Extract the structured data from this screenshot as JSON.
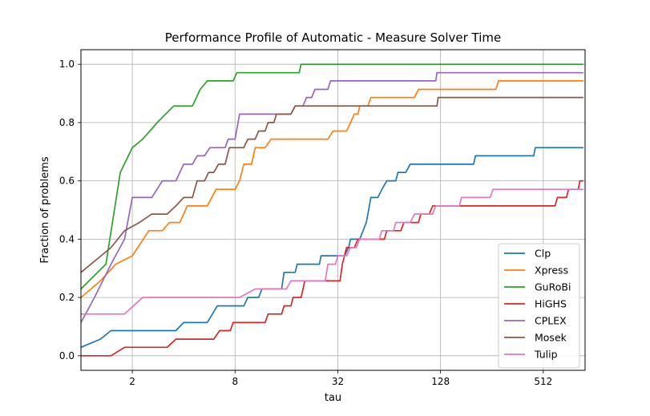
{
  "chart_data": {
    "type": "line",
    "step": true,
    "title": "Performance Profile of Automatic - Measure Solver Time",
    "xlabel": "tau",
    "ylabel": "Fraction of problems",
    "xscale": "log2",
    "xlim": [
      1,
      900
    ],
    "ylim": [
      -0.05,
      1.05
    ],
    "xticks": [
      2,
      8,
      32,
      128,
      512
    ],
    "xtick_labels": [
      "2",
      "8",
      "32",
      "128",
      "512"
    ],
    "yticks": [
      0.0,
      0.2,
      0.4,
      0.6,
      0.8,
      1.0
    ],
    "ytick_labels": [
      "0.0",
      "0.2",
      "0.4",
      "0.6",
      "0.8",
      "1.0"
    ],
    "grid": true,
    "legend_position": "lower-right",
    "series": [
      {
        "name": "Clp",
        "color": "#1f77b4",
        "points": [
          [
            1,
            0.029
          ],
          [
            1.3,
            0.057
          ],
          [
            1.5,
            0.086
          ],
          [
            2,
            0.086
          ],
          [
            3.6,
            0.086
          ],
          [
            4,
            0.114
          ],
          [
            5.5,
            0.114
          ],
          [
            6.3,
            0.171
          ],
          [
            9,
            0.171
          ],
          [
            9.5,
            0.2
          ],
          [
            11,
            0.2
          ],
          [
            11.5,
            0.229
          ],
          [
            15,
            0.229
          ],
          [
            15.5,
            0.286
          ],
          [
            18,
            0.286
          ],
          [
            18.5,
            0.314
          ],
          [
            25,
            0.314
          ],
          [
            25.5,
            0.343
          ],
          [
            35,
            0.343
          ],
          [
            37,
            0.371
          ],
          [
            38,
            0.4
          ],
          [
            43,
            0.4
          ],
          [
            45,
            0.429
          ],
          [
            47,
            0.457
          ],
          [
            48,
            0.486
          ],
          [
            50,
            0.543
          ],
          [
            55,
            0.543
          ],
          [
            58,
            0.571
          ],
          [
            62,
            0.6
          ],
          [
            70,
            0.6
          ],
          [
            72,
            0.629
          ],
          [
            80,
            0.629
          ],
          [
            85,
            0.657
          ],
          [
            200,
            0.657
          ],
          [
            205,
            0.686
          ],
          [
            450,
            0.686
          ],
          [
            460,
            0.714
          ],
          [
            880,
            0.714
          ]
        ]
      },
      {
        "name": "Xpress",
        "color": "#ff7f0e",
        "points": [
          [
            1,
            0.2
          ],
          [
            1.3,
            0.257
          ],
          [
            1.6,
            0.314
          ],
          [
            2,
            0.343
          ],
          [
            2.5,
            0.429
          ],
          [
            3,
            0.429
          ],
          [
            3.3,
            0.457
          ],
          [
            3.8,
            0.457
          ],
          [
            4.2,
            0.514
          ],
          [
            5.5,
            0.514
          ],
          [
            6.2,
            0.571
          ],
          [
            8,
            0.571
          ],
          [
            8.5,
            0.6
          ],
          [
            9,
            0.657
          ],
          [
            10,
            0.657
          ],
          [
            10.5,
            0.714
          ],
          [
            12,
            0.714
          ],
          [
            13,
            0.743
          ],
          [
            28,
            0.743
          ],
          [
            30,
            0.771
          ],
          [
            36,
            0.771
          ],
          [
            38,
            0.8
          ],
          [
            40,
            0.829
          ],
          [
            42,
            0.829
          ],
          [
            43,
            0.857
          ],
          [
            48,
            0.857
          ],
          [
            50,
            0.886
          ],
          [
            90,
            0.886
          ],
          [
            95,
            0.914
          ],
          [
            270,
            0.914
          ],
          [
            280,
            0.943
          ],
          [
            880,
            0.943
          ]
        ]
      },
      {
        "name": "GuRoBi",
        "color": "#2ca02c",
        "points": [
          [
            1,
            0.229
          ],
          [
            1.4,
            0.314
          ],
          [
            1.7,
            0.629
          ],
          [
            2,
            0.714
          ],
          [
            2.3,
            0.743
          ],
          [
            2.8,
            0.8
          ],
          [
            3.5,
            0.857
          ],
          [
            4.5,
            0.857
          ],
          [
            5,
            0.914
          ],
          [
            5.5,
            0.943
          ],
          [
            7.8,
            0.943
          ],
          [
            8.2,
            0.971
          ],
          [
            19,
            0.971
          ],
          [
            19.5,
            1.0
          ],
          [
            880,
            1.0
          ]
        ]
      },
      {
        "name": "HiGHS",
        "color": "#d62728",
        "points": [
          [
            1,
            0.0
          ],
          [
            1.5,
            0.0
          ],
          [
            1.8,
            0.029
          ],
          [
            3.2,
            0.029
          ],
          [
            3.6,
            0.057
          ],
          [
            6,
            0.057
          ],
          [
            6.5,
            0.086
          ],
          [
            7.5,
            0.086
          ],
          [
            7.8,
            0.114
          ],
          [
            12,
            0.114
          ],
          [
            12.5,
            0.143
          ],
          [
            15,
            0.143
          ],
          [
            15.5,
            0.171
          ],
          [
            17,
            0.171
          ],
          [
            17.5,
            0.2
          ],
          [
            19.5,
            0.2
          ],
          [
            20.5,
            0.257
          ],
          [
            33,
            0.257
          ],
          [
            34,
            0.314
          ],
          [
            36,
            0.371
          ],
          [
            40,
            0.371
          ],
          [
            42,
            0.4
          ],
          [
            60,
            0.4
          ],
          [
            62,
            0.429
          ],
          [
            75,
            0.429
          ],
          [
            78,
            0.457
          ],
          [
            95,
            0.457
          ],
          [
            98,
            0.486
          ],
          [
            110,
            0.486
          ],
          [
            115,
            0.514
          ],
          [
            160,
            0.514
          ],
          [
            165,
            0.514
          ],
          [
            600,
            0.514
          ],
          [
            620,
            0.543
          ],
          [
            700,
            0.543
          ],
          [
            720,
            0.571
          ],
          [
            820,
            0.571
          ],
          [
            840,
            0.6
          ],
          [
            880,
            0.6
          ]
        ]
      },
      {
        "name": "CPLEX",
        "color": "#9467bd",
        "points": [
          [
            1,
            0.114
          ],
          [
            1.2,
            0.2
          ],
          [
            1.5,
            0.314
          ],
          [
            1.8,
            0.4
          ],
          [
            2,
            0.543
          ],
          [
            2.6,
            0.543
          ],
          [
            3,
            0.6
          ],
          [
            3.6,
            0.6
          ],
          [
            4,
            0.657
          ],
          [
            4.5,
            0.657
          ],
          [
            4.8,
            0.686
          ],
          [
            5.3,
            0.686
          ],
          [
            5.7,
            0.714
          ],
          [
            7,
            0.714
          ],
          [
            7.3,
            0.743
          ],
          [
            8,
            0.743
          ],
          [
            8.5,
            0.829
          ],
          [
            17,
            0.829
          ],
          [
            18,
            0.857
          ],
          [
            20,
            0.857
          ],
          [
            21,
            0.886
          ],
          [
            22.5,
            0.886
          ],
          [
            23.5,
            0.914
          ],
          [
            28,
            0.914
          ],
          [
            29,
            0.943
          ],
          [
            120,
            0.943
          ],
          [
            122,
            0.971
          ],
          [
            880,
            0.971
          ]
        ]
      },
      {
        "name": "Mosek",
        "color": "#8c564b",
        "points": [
          [
            1,
            0.286
          ],
          [
            1.5,
            0.371
          ],
          [
            1.8,
            0.429
          ],
          [
            2.2,
            0.457
          ],
          [
            2.6,
            0.486
          ],
          [
            3.2,
            0.486
          ],
          [
            3.6,
            0.514
          ],
          [
            4,
            0.543
          ],
          [
            4.5,
            0.543
          ],
          [
            4.8,
            0.6
          ],
          [
            5.3,
            0.6
          ],
          [
            5.6,
            0.629
          ],
          [
            6,
            0.629
          ],
          [
            6.4,
            0.657
          ],
          [
            7,
            0.657
          ],
          [
            7.4,
            0.714
          ],
          [
            9,
            0.714
          ],
          [
            9.5,
            0.743
          ],
          [
            10.5,
            0.743
          ],
          [
            11,
            0.771
          ],
          [
            12,
            0.771
          ],
          [
            12.5,
            0.8
          ],
          [
            13.5,
            0.8
          ],
          [
            14,
            0.829
          ],
          [
            17,
            0.829
          ],
          [
            18,
            0.857
          ],
          [
            122,
            0.857
          ],
          [
            124,
            0.886
          ],
          [
            880,
            0.886
          ]
        ]
      },
      {
        "name": "Tulip",
        "color": "#e377c2",
        "points": [
          [
            1,
            0.143
          ],
          [
            1.8,
            0.143
          ],
          [
            2.3,
            0.2
          ],
          [
            8.5,
            0.2
          ],
          [
            10.5,
            0.229
          ],
          [
            16,
            0.229
          ],
          [
            17,
            0.257
          ],
          [
            19,
            0.257
          ],
          [
            20,
            0.257
          ],
          [
            27,
            0.257
          ],
          [
            28,
            0.314
          ],
          [
            31,
            0.314
          ],
          [
            32,
            0.343
          ],
          [
            36,
            0.343
          ],
          [
            38,
            0.371
          ],
          [
            41,
            0.371
          ],
          [
            43,
            0.4
          ],
          [
            56,
            0.4
          ],
          [
            58,
            0.429
          ],
          [
            68,
            0.429
          ],
          [
            70,
            0.457
          ],
          [
            85,
            0.457
          ],
          [
            90,
            0.486
          ],
          [
            115,
            0.486
          ],
          [
            120,
            0.514
          ],
          [
            165,
            0.514
          ],
          [
            170,
            0.543
          ],
          [
            250,
            0.543
          ],
          [
            260,
            0.571
          ],
          [
            880,
            0.571
          ]
        ]
      }
    ]
  }
}
